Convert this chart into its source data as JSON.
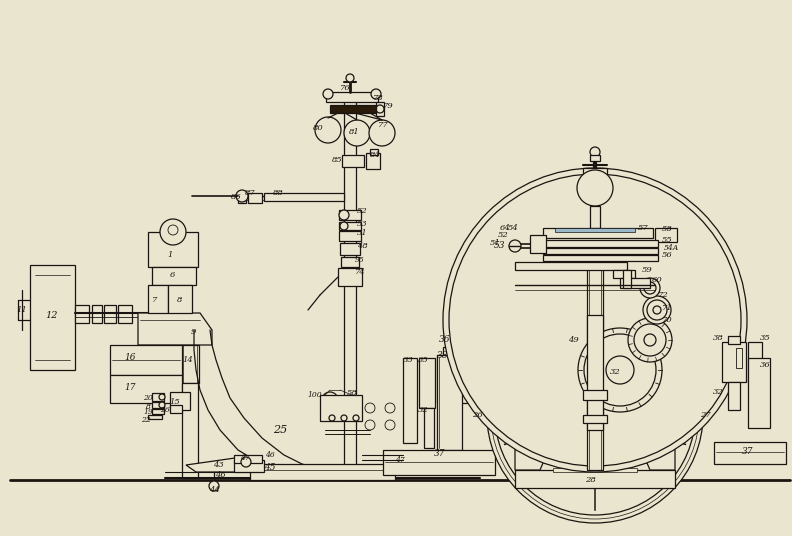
{
  "bg_color": "#EAE5CF",
  "line_color": "#1a1510",
  "lw": 0.9,
  "fig_width": 7.92,
  "fig_height": 5.36,
  "dpi": 100
}
